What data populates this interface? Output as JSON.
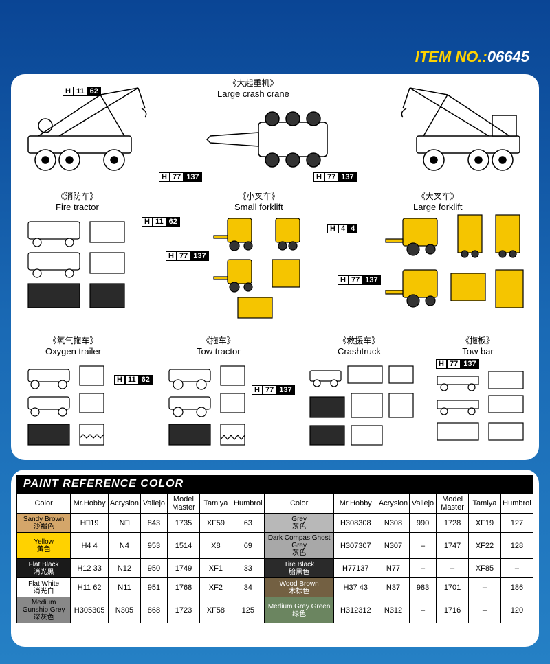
{
  "header": {
    "item_label": "ITEM NO.:",
    "item_number": "06645"
  },
  "vehicles": {
    "large_crane": {
      "cn": "《大起重机》",
      "en": "Large crash crane"
    },
    "fire_tractor": {
      "cn": "《消防车》",
      "en": "Fire tractor"
    },
    "small_forklift": {
      "cn": "《小叉车》",
      "en": "Small forklift"
    },
    "large_forklift": {
      "cn": "《大叉车》",
      "en": "Large forklift"
    },
    "oxygen_trailer": {
      "cn": "《氧气拖车》",
      "en": "Oxygen trailer"
    },
    "tow_tractor": {
      "cn": "《拖车》",
      "en": "Tow tractor"
    },
    "crashtruck": {
      "cn": "《救援车》",
      "en": "Crashtruck"
    },
    "tow_bar": {
      "cn": "《拖板》",
      "en": "Tow bar"
    }
  },
  "codes": {
    "h11_62": {
      "h": "H",
      "c1": "11",
      "c2": "62"
    },
    "h77_137": {
      "h": "H",
      "c1": "77",
      "c2": "137"
    },
    "h4_4": {
      "h": "H",
      "c1": "4",
      "c2": "4"
    }
  },
  "paint": {
    "header": "PAINT  REFERENCE COLOR",
    "columns_left": [
      "Color",
      "Mr.Hobby",
      "Acrysion",
      "Vallejo",
      "Model Master",
      "Tamiya",
      "Humbrol"
    ],
    "columns_right": [
      "Color",
      "Mr.Hobby",
      "Acrysion",
      "Vallejo",
      "Model Master",
      "Tamiya",
      "Humbrol"
    ],
    "rows": [
      {
        "l_color": "Sandy Brown",
        "l_cn": "沙褐色",
        "l_bg": "#d4a66a",
        "l_mr": "H□19",
        "l_ac": "N□",
        "l_va": "843",
        "l_mm": "1735",
        "l_ta": "XF59",
        "l_hu": "63",
        "r_color": "Grey",
        "r_cn": "灰色",
        "r_bg": "#b8b8b8",
        "r_mr": "H308308",
        "r_ac": "N308",
        "r_va": "990",
        "r_mm": "1728",
        "r_ta": "XF19",
        "r_hu": "127"
      },
      {
        "l_color": "Yellow",
        "l_cn": "黄色",
        "l_bg": "#ffd200",
        "l_mr": "H4 4",
        "l_ac": "N4",
        "l_va": "953",
        "l_mm": "1514",
        "l_ta": "X8",
        "l_hu": "69",
        "r_color": "Dark Compas Ghost Grey",
        "r_cn": "灰色",
        "r_bg": "#a8a8a8",
        "r_mr": "H307307",
        "r_ac": "N307",
        "r_va": "–",
        "r_mm": "1747",
        "r_ta": "XF22",
        "r_hu": "128"
      },
      {
        "l_color": "Flat Black",
        "l_cn": "消光黑",
        "l_bg": "#1a1a1a",
        "l_fg": "#fff",
        "l_mr": "H12 33",
        "l_ac": "N12",
        "l_va": "950",
        "l_mm": "1749",
        "l_ta": "XF1",
        "l_hu": "33",
        "r_color": "Tire Black",
        "r_cn": "胎黑色",
        "r_bg": "#2a2a2a",
        "r_fg": "#fff",
        "r_mr": "H77137",
        "r_ac": "N77",
        "r_va": "–",
        "r_mm": "–",
        "r_ta": "XF85",
        "r_hu": "–"
      },
      {
        "l_color": "Flat White",
        "l_cn": "消光白",
        "l_bg": "#ffffff",
        "l_mr": "H11 62",
        "l_ac": "N11",
        "l_va": "951",
        "l_mm": "1768",
        "l_ta": "XF2",
        "l_hu": "34",
        "r_color": "Wood Brown",
        "r_cn": "木棕色",
        "r_bg": "#736042",
        "r_fg": "#fff",
        "r_mr": "H37 43",
        "r_ac": "N37",
        "r_va": "983",
        "r_mm": "1701",
        "r_ta": "–",
        "r_hu": "186"
      },
      {
        "l_color": "Medium Gunship Grey",
        "l_cn": "深灰色",
        "l_bg": "#888888",
        "l_mr": "H305305",
        "l_ac": "N305",
        "l_va": "868",
        "l_mm": "1723",
        "l_ta": "XF58",
        "l_hu": "125",
        "r_color": "Medium Grey Green",
        "r_cn": "绿色",
        "r_bg": "#6b8560",
        "r_fg": "#fff",
        "r_mr": "H312312",
        "r_ac": "N312",
        "r_va": "–",
        "r_mm": "1716",
        "r_ta": "–",
        "r_hu": "120"
      }
    ]
  },
  "colors": {
    "yellow": "#f5c500",
    "outline": "#000000"
  }
}
